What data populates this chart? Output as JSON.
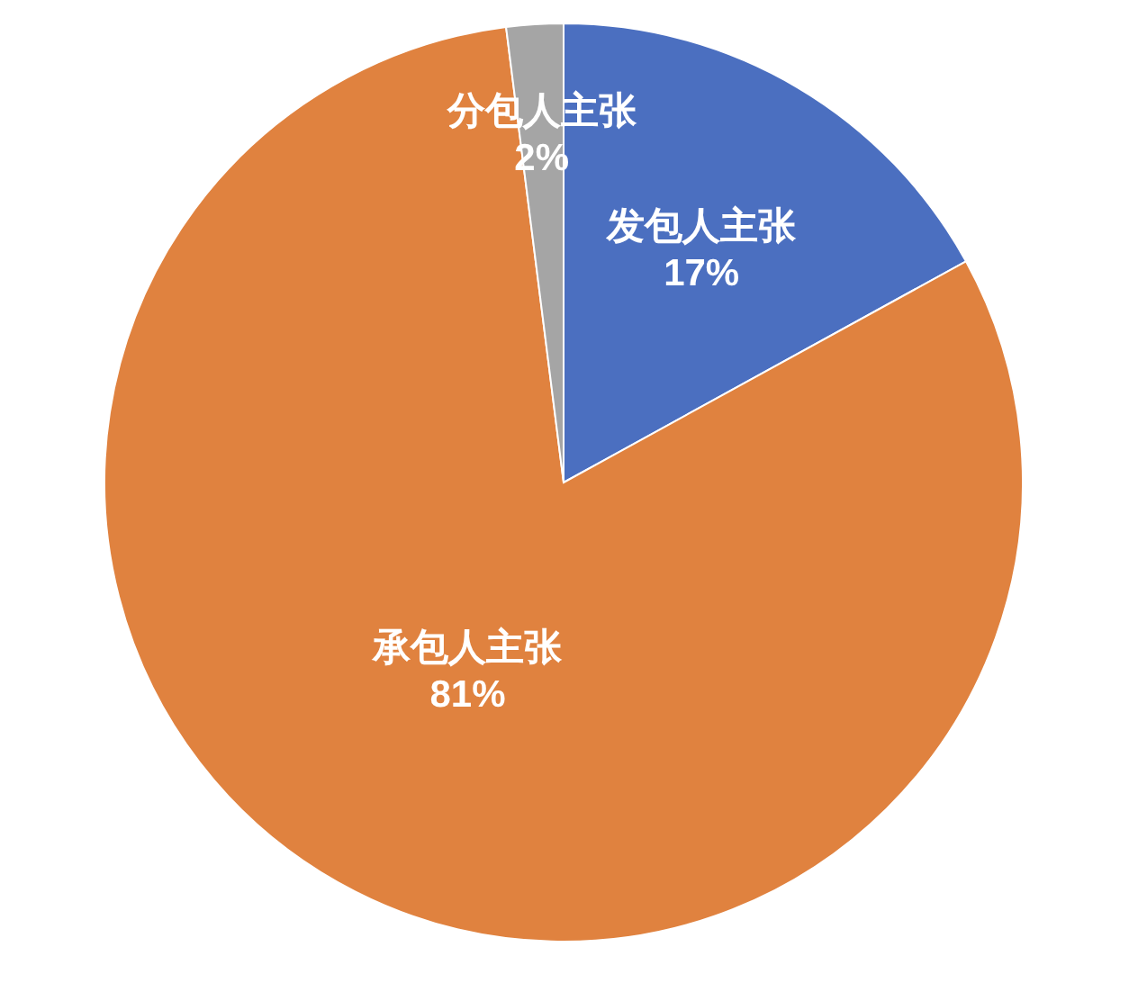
{
  "chart_data": {
    "type": "pie",
    "categories": [
      "发包人主张",
      "承包人主张",
      "分包人主张"
    ],
    "values": [
      17,
      81,
      2
    ],
    "value_labels": [
      "17%",
      "81%",
      "2%"
    ],
    "colors": [
      "#4b6fc0",
      "#e0823f",
      "#a5a5a5"
    ]
  }
}
